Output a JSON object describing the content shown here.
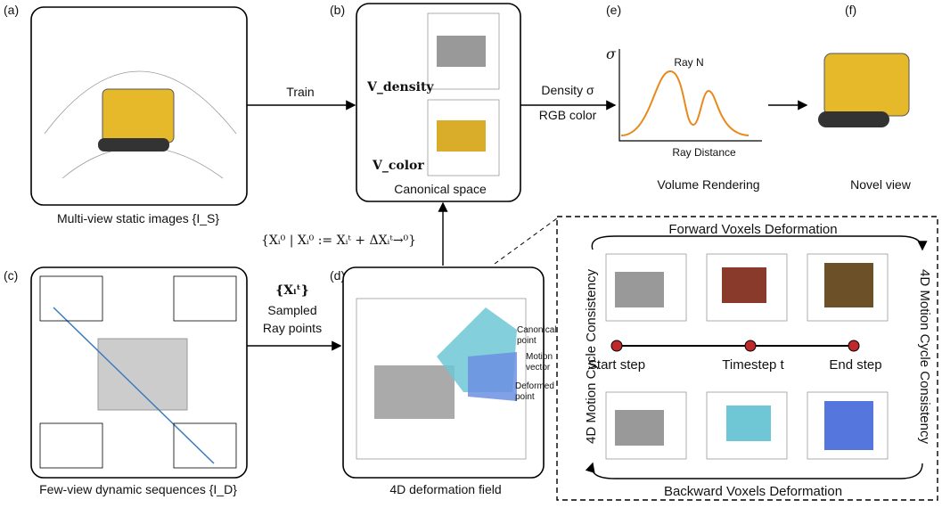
{
  "panel_a": {
    "label": "(a)",
    "caption": "Multi-view static images {I_S}"
  },
  "train": "Train",
  "panel_b": {
    "label": "(b)",
    "density": "V_density",
    "color": "V_color",
    "caption": "Canonical space"
  },
  "outputs": {
    "density": "Density σ",
    "rgb": "RGB color"
  },
  "panel_e": {
    "label": "(e)",
    "y_axis": "σ",
    "curve": "Ray N",
    "x_axis": "Ray Distance",
    "caption": "Volume Rendering"
  },
  "panel_f": {
    "label": "(f)",
    "caption": "Novel view"
  },
  "formula": "{Xᵢ⁰ | Xᵢ⁰ := Xᵢᵗ + ΔXᵢᵗ→⁰}",
  "panel_c": {
    "label": "(c)",
    "caption": "Few-view dynamic sequences {I_D}"
  },
  "sampled": {
    "set": "{Xᵢᵗ}",
    "line1": "Sampled",
    "line2": "Ray points"
  },
  "panel_d": {
    "label": "(d)",
    "caption": "4D deformation field",
    "annotations": [
      "Canonical",
      "point",
      "Motion",
      "vector",
      "Deformed",
      "point"
    ]
  },
  "detail": {
    "forward": "Forward Voxels Deformation",
    "backward": "Backward Voxels Deformation",
    "cycle_left": "4D Motion Cycle Consistency",
    "cycle_right": "4D Motion Cycle Consistency",
    "steps": [
      "Start step",
      "Timestep t",
      "End step"
    ]
  }
}
